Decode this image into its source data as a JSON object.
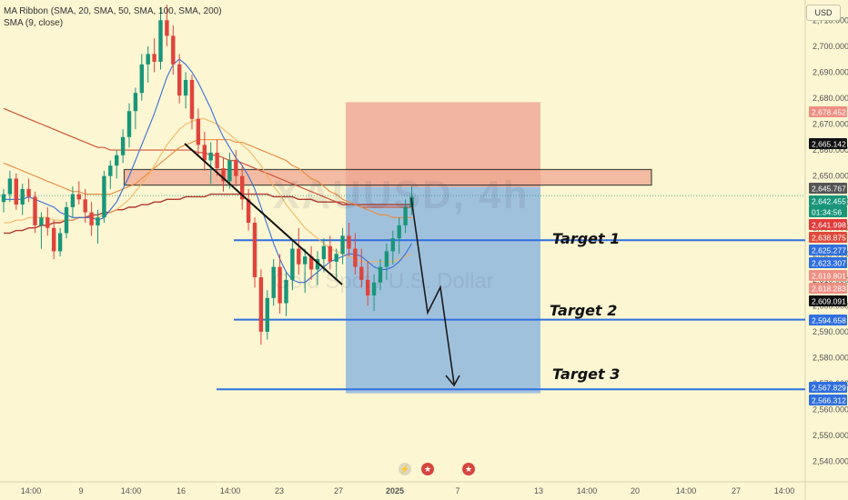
{
  "legend": {
    "line1": "MA Ribbon (SMA, 20, SMA, 50, SMA, 100, SMA, 200)",
    "line2": "SMA (9, close)"
  },
  "currency": "USD",
  "watermark": {
    "symbol": "XAUUSD, 4h",
    "name": "Gold Spot / U.S. Dollar"
  },
  "targets": [
    {
      "label": "Target 1",
      "price": 2625.277
    },
    {
      "label": "Target 2",
      "price": 2594.658
    },
    {
      "label": "Target 3",
      "price": 2567.829
    }
  ],
  "chart_data": {
    "type": "candlestick",
    "symbol": "XAUUSD",
    "timeframe": "4h",
    "ylim": [
      2535,
      2715
    ],
    "y_ticks": [
      2540,
      2550,
      2560,
      2570,
      2580,
      2590,
      2600,
      2610,
      2620,
      2630,
      2640,
      2650,
      2660,
      2670,
      2680,
      2690,
      2700,
      2710
    ],
    "y_tick_labels": [
      "2,540.000",
      "2,550.000",
      "2,560.000",
      "2,570.000",
      "2,580.000",
      "2,590.000",
      "2,600.000",
      "2,610.000",
      "2,620.000",
      "2,630.000",
      "2,640.000",
      "2,650.000",
      "2,660.000",
      "2,670.000",
      "2,680.000",
      "2,690.000",
      "2,700.000",
      "2,710.000"
    ],
    "x_tick_labels": [
      "14:00",
      "9",
      "14:00",
      "16",
      "14:00",
      "23",
      "27",
      "2025",
      "7",
      "13",
      "14:00",
      "20",
      "14:00",
      "27",
      "14:00"
    ],
    "x_tick_index": [
      5,
      16,
      27,
      38,
      49,
      60,
      71,
      82,
      95,
      112,
      122,
      132,
      142,
      152,
      162
    ],
    "last_price": 2642.455,
    "countdown": "01:34:56",
    "price_tags": [
      {
        "value": "2,678.452",
        "color": "#ef8f84"
      },
      {
        "value": "2,665.142",
        "color": "#111111"
      },
      {
        "value": "2,645.767",
        "color": "#555555"
      },
      {
        "value": "2,642.455",
        "color": "#19967a"
      },
      {
        "value": "01:34:56",
        "color": "#19967a"
      },
      {
        "value": "2,641.998",
        "color": "#e03b3b"
      },
      {
        "value": "2,638.875",
        "color": "#e04a3b"
      },
      {
        "value": "2,625.277",
        "color": "#2f6fe0"
      },
      {
        "value": "2,623.307",
        "color": "#2f6fe0"
      },
      {
        "value": "2,619.801",
        "color": "#ef8f84"
      },
      {
        "value": "2,618.283",
        "color": "#ef8f84"
      },
      {
        "value": "2,609.091",
        "color": "#111111"
      },
      {
        "value": "2,594.658",
        "color": "#2f6fe0"
      },
      {
        "value": "2,567.829",
        "color": "#2f6fe0"
      },
      {
        "value": "2,566.312",
        "color": "#2f6fe0"
      }
    ],
    "candles": [
      [
        2640,
        2645,
        2636,
        2643
      ],
      [
        2643,
        2652,
        2640,
        2649
      ],
      [
        2649,
        2651,
        2637,
        2639
      ],
      [
        2639,
        2647,
        2635,
        2645
      ],
      [
        2645,
        2649,
        2640,
        2642
      ],
      [
        2642,
        2644,
        2628,
        2631
      ],
      [
        2631,
        2636,
        2622,
        2634
      ],
      [
        2634,
        2638,
        2627,
        2630
      ],
      [
        2630,
        2633,
        2618,
        2621
      ],
      [
        2621,
        2630,
        2619,
        2628
      ],
      [
        2628,
        2640,
        2626,
        2638
      ],
      [
        2638,
        2646,
        2634,
        2643
      ],
      [
        2643,
        2648,
        2639,
        2641
      ],
      [
        2641,
        2645,
        2632,
        2636
      ],
      [
        2636,
        2640,
        2627,
        2631
      ],
      [
        2631,
        2637,
        2624,
        2634
      ],
      [
        2634,
        2652,
        2632,
        2650
      ],
      [
        2650,
        2656,
        2645,
        2654
      ],
      [
        2654,
        2660,
        2649,
        2658
      ],
      [
        2658,
        2668,
        2655,
        2665
      ],
      [
        2665,
        2678,
        2661,
        2675
      ],
      [
        2675,
        2684,
        2668,
        2682
      ],
      [
        2682,
        2697,
        2679,
        2693
      ],
      [
        2693,
        2700,
        2686,
        2697
      ],
      [
        2697,
        2703,
        2690,
        2694
      ],
      [
        2694,
        2715,
        2691,
        2710
      ],
      [
        2710,
        2716,
        2700,
        2704
      ],
      [
        2704,
        2708,
        2689,
        2693
      ],
      [
        2693,
        2697,
        2678,
        2681
      ],
      [
        2681,
        2690,
        2676,
        2687
      ],
      [
        2687,
        2689,
        2668,
        2672
      ],
      [
        2672,
        2676,
        2658,
        2662
      ],
      [
        2662,
        2667,
        2652,
        2656
      ],
      [
        2656,
        2663,
        2647,
        2659
      ],
      [
        2659,
        2664,
        2650,
        2653
      ],
      [
        2653,
        2657,
        2644,
        2648
      ],
      [
        2648,
        2659,
        2645,
        2656
      ],
      [
        2656,
        2660,
        2646,
        2650
      ],
      [
        2650,
        2654,
        2637,
        2641
      ],
      [
        2641,
        2645,
        2629,
        2632
      ],
      [
        2632,
        2634,
        2607,
        2611
      ],
      [
        2611,
        2614,
        2585,
        2590
      ],
      [
        2590,
        2606,
        2587,
        2603
      ],
      [
        2603,
        2618,
        2600,
        2615
      ],
      [
        2615,
        2620,
        2597,
        2601
      ],
      [
        2601,
        2613,
        2596,
        2610
      ],
      [
        2610,
        2625,
        2606,
        2622
      ],
      [
        2622,
        2630,
        2612,
        2616
      ],
      [
        2616,
        2622,
        2605,
        2619
      ],
      [
        2619,
        2623,
        2610,
        2614
      ],
      [
        2614,
        2621,
        2608,
        2618
      ],
      [
        2618,
        2626,
        2613,
        2623
      ],
      [
        2623,
        2627,
        2614,
        2617
      ],
      [
        2617,
        2622,
        2610,
        2620
      ],
      [
        2620,
        2630,
        2616,
        2627
      ],
      [
        2627,
        2632,
        2619,
        2622
      ],
      [
        2622,
        2628,
        2612,
        2615
      ],
      [
        2615,
        2622,
        2607,
        2610
      ],
      [
        2610,
        2617,
        2600,
        2604
      ],
      [
        2604,
        2612,
        2598,
        2609
      ],
      [
        2609,
        2618,
        2606,
        2615
      ],
      [
        2615,
        2624,
        2610,
        2621
      ],
      [
        2621,
        2629,
        2616,
        2626
      ],
      [
        2626,
        2634,
        2620,
        2631
      ],
      [
        2631,
        2641,
        2628,
        2638
      ],
      [
        2638,
        2646,
        2635,
        2642
      ]
    ],
    "sma9": [
      2641,
      2641,
      2641,
      2641,
      2642,
      2641,
      2640,
      2639,
      2638,
      2636,
      2635,
      2634,
      2634,
      2634,
      2634,
      2633,
      2634,
      2637,
      2640,
      2645,
      2650,
      2656,
      2662,
      2668,
      2674,
      2681,
      2688,
      2693,
      2695,
      2693,
      2690,
      2686,
      2681,
      2676,
      2670,
      2665,
      2661,
      2657,
      2654,
      2650,
      2645,
      2638,
      2631,
      2624,
      2618,
      2613,
      2610,
      2609,
      2609,
      2611,
      2613,
      2615,
      2617,
      2618,
      2619,
      2620,
      2620,
      2619,
      2617,
      2615,
      2614,
      2614,
      2615,
      2617,
      2620,
      2624
    ],
    "ma20": [
      2632,
      2632,
      2633,
      2633,
      2634,
      2634,
      2634,
      2634,
      2633,
      2633,
      2633,
      2633,
      2634,
      2634,
      2634,
      2634,
      2635,
      2636,
      2637,
      2639,
      2641,
      2644,
      2647,
      2650,
      2654,
      2658,
      2662,
      2665,
      2668,
      2670,
      2671,
      2672,
      2672,
      2671,
      2670,
      2668,
      2666,
      2664,
      2662,
      2660,
      2657,
      2654,
      2650,
      2646,
      2643,
      2639,
      2636,
      2633,
      2630,
      2628,
      2626,
      2624,
      2622,
      2621,
      2620,
      2619,
      2618,
      2617,
      2617,
      2617,
      2617,
      2617,
      2617,
      2618,
      2619,
      2620
    ],
    "ma50": [
      2655,
      2654,
      2653,
      2652,
      2651,
      2650,
      2649,
      2648,
      2647,
      2646,
      2645,
      2644,
      2644,
      2643,
      2643,
      2643,
      2643,
      2643,
      2644,
      2645,
      2646,
      2647,
      2649,
      2651,
      2653,
      2655,
      2657,
      2659,
      2661,
      2662,
      2663,
      2664,
      2664,
      2664,
      2664,
      2664,
      2664,
      2663,
      2663,
      2662,
      2661,
      2660,
      2659,
      2658,
      2657,
      2656,
      2654,
      2653,
      2651,
      2649,
      2648,
      2646,
      2644,
      2643,
      2641,
      2640,
      2639,
      2638,
      2637,
      2636,
      2635,
      2635,
      2634,
      2634,
      2634,
      2634
    ],
    "ma100": [
      2676,
      2675,
      2674,
      2673,
      2672,
      2671,
      2670,
      2669,
      2668,
      2667,
      2666,
      2665,
      2664,
      2663,
      2662,
      2661,
      2661,
      2660,
      2660,
      2660,
      2660,
      2660,
      2660,
      2660,
      2660,
      2660,
      2660,
      2660,
      2660,
      2660,
      2660,
      2659,
      2659,
      2658,
      2658,
      2657,
      2656,
      2656,
      2655,
      2654,
      2653,
      2652,
      2651,
      2650,
      2649,
      2648,
      2647,
      2646,
      2645,
      2644,
      2643,
      2642,
      2641,
      2640,
      2640,
      2639,
      2639,
      2638,
      2638,
      2638,
      2638,
      2638,
      2638,
      2638,
      2638,
      2638
    ],
    "ma200": [
      2628,
      2628,
      2629,
      2629,
      2630,
      2630,
      2631,
      2631,
      2632,
      2632,
      2633,
      2633,
      2634,
      2634,
      2635,
      2635,
      2636,
      2636,
      2637,
      2637,
      2638,
      2638,
      2639,
      2639,
      2640,
      2640,
      2641,
      2641,
      2641,
      2642,
      2642,
      2642,
      2642,
      2643,
      2643,
      2643,
      2643,
      2643,
      2643,
      2643,
      2643,
      2643,
      2643,
      2642,
      2642,
      2642,
      2642,
      2641,
      2641,
      2641,
      2640,
      2640,
      2640,
      2640,
      2639,
      2639,
      2639,
      2639,
      2639,
      2639,
      2639,
      2639,
      2639,
      2639,
      2639,
      2639
    ],
    "resistance_zone": [
      2646.5,
      2652.5
    ],
    "short_position": {
      "entry": 2645.767,
      "stop": 2678.452,
      "target": 2566.312
    }
  }
}
